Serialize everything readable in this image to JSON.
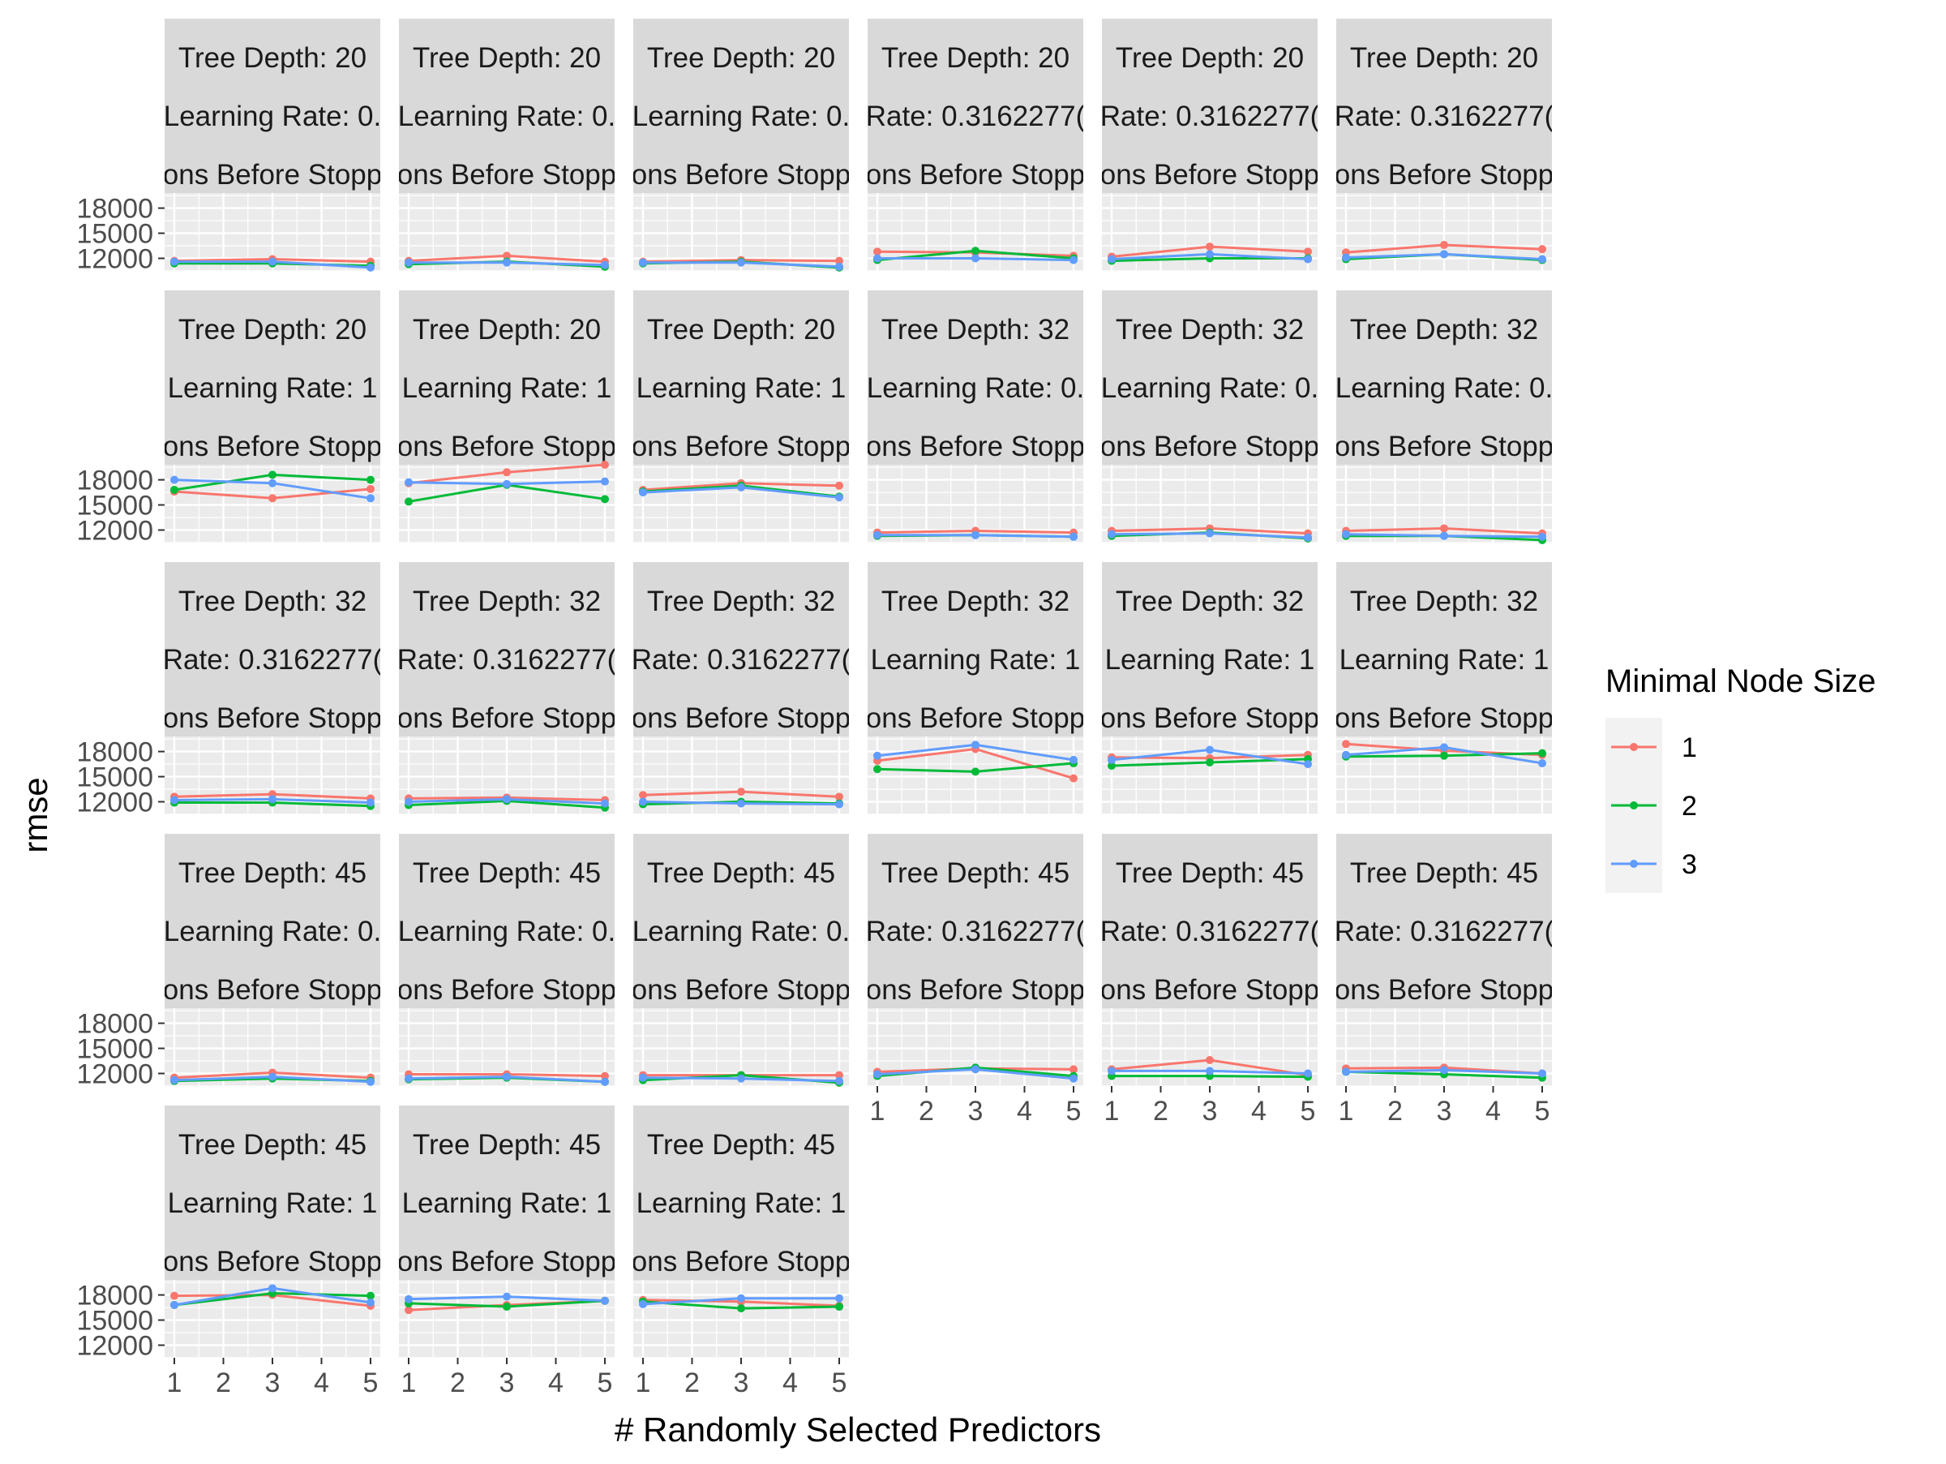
{
  "chart_data": {
    "type": "line",
    "title": "",
    "xlabel": "# Randomly Selected Predictors",
    "ylabel": "rmse",
    "x": [
      1,
      3,
      5
    ],
    "x_ticks": [
      1,
      2,
      3,
      4,
      5
    ],
    "y_ticks": [
      12000,
      15000,
      18000
    ],
    "xlim": [
      1,
      5
    ],
    "ylim": [
      10500,
      19800
    ],
    "grid": true,
    "legend": {
      "title": "Minimal Node Size",
      "position": "right",
      "entries": [
        {
          "label": "1",
          "color": "#F8766D"
        },
        {
          "label": "2",
          "color": "#00BA38"
        },
        {
          "label": "3",
          "color": "#619CFF"
        }
      ]
    },
    "panels": [
      {
        "strips": [
          "Tree Depth: 20",
          "Learning Rate: 0.",
          "ons Before Stopp"
        ],
        "series": [
          {
            "name": "1",
            "values": [
              11700,
              11900,
              11600
            ]
          },
          {
            "name": "2",
            "values": [
              11400,
              11400,
              11100
            ]
          },
          {
            "name": "3",
            "values": [
              11600,
              11600,
              10900
            ]
          }
        ]
      },
      {
        "strips": [
          "Tree Depth: 20",
          "Learning Rate: 0.",
          "ons Before Stopp"
        ],
        "series": [
          {
            "name": "1",
            "values": [
              11700,
              12300,
              11600
            ]
          },
          {
            "name": "2",
            "values": [
              11300,
              11600,
              11000
            ]
          },
          {
            "name": "3",
            "values": [
              11500,
              11500,
              11200
            ]
          }
        ]
      },
      {
        "strips": [
          "Tree Depth: 20",
          "Learning Rate: 0.",
          "ons Before Stopp"
        ],
        "series": [
          {
            "name": "1",
            "values": [
              11600,
              11800,
              11700
            ]
          },
          {
            "name": "2",
            "values": [
              11400,
              11600,
              10900
            ]
          },
          {
            "name": "3",
            "values": [
              11500,
              11500,
              11000
            ]
          }
        ]
      },
      {
        "strips": [
          "Tree Depth: 20",
          "Rate: 0.3162277(",
          "ons Before Stopp"
        ],
        "series": [
          {
            "name": "1",
            "values": [
              12800,
              12700,
              12300
            ]
          },
          {
            "name": "2",
            "values": [
              11800,
              12900,
              12000
            ]
          },
          {
            "name": "3",
            "values": [
              12000,
              12000,
              11800
            ]
          }
        ]
      },
      {
        "strips": [
          "Tree Depth: 20",
          "Rate: 0.3162277(",
          "ons Before Stopp"
        ],
        "series": [
          {
            "name": "1",
            "values": [
              12200,
              13400,
              12800
            ]
          },
          {
            "name": "2",
            "values": [
              11700,
              12000,
              12000
            ]
          },
          {
            "name": "3",
            "values": [
              11900,
              12500,
              11900
            ]
          }
        ]
      },
      {
        "strips": [
          "Tree Depth: 20",
          "Rate: 0.3162277(",
          "ons Before Stopp"
        ],
        "series": [
          {
            "name": "1",
            "values": [
              12700,
              13600,
              13100
            ]
          },
          {
            "name": "2",
            "values": [
              11900,
              12500,
              11800
            ]
          },
          {
            "name": "3",
            "values": [
              12100,
              12500,
              11900
            ]
          }
        ]
      },
      {
        "strips": [
          "Tree Depth: 20",
          "Learning Rate: 1",
          "ons Before Stopp"
        ],
        "series": [
          {
            "name": "1",
            "values": [
              16600,
              15800,
              16900
            ]
          },
          {
            "name": "2",
            "values": [
              16800,
              18600,
              18000
            ]
          },
          {
            "name": "3",
            "values": [
              18000,
              17600,
              15800
            ]
          }
        ]
      },
      {
        "strips": [
          "Tree Depth: 20",
          "Learning Rate: 1",
          "ons Before Stopp"
        ],
        "series": [
          {
            "name": "1",
            "values": [
              17600,
              18900,
              19800
            ]
          },
          {
            "name": "2",
            "values": [
              15400,
              17400,
              15700
            ]
          },
          {
            "name": "3",
            "values": [
              17700,
              17500,
              17800
            ]
          }
        ]
      },
      {
        "strips": [
          "Tree Depth: 20",
          "Learning Rate: 1",
          "ons Before Stopp"
        ],
        "series": [
          {
            "name": "1",
            "values": [
              16800,
              17600,
              17300
            ]
          },
          {
            "name": "2",
            "values": [
              16600,
              17300,
              16000
            ]
          },
          {
            "name": "3",
            "values": [
              16500,
              17100,
              15900
            ]
          }
        ]
      },
      {
        "strips": [
          "Tree Depth: 32",
          "Learning Rate: 0.",
          "ons Before Stopp"
        ],
        "series": [
          {
            "name": "1",
            "values": [
              11700,
              11900,
              11700
            ]
          },
          {
            "name": "2",
            "values": [
              11300,
              11400,
              11200
            ]
          },
          {
            "name": "3",
            "values": [
              11400,
              11400,
              11200
            ]
          }
        ]
      },
      {
        "strips": [
          "Tree Depth: 32",
          "Learning Rate: 0.",
          "ons Before Stopp"
        ],
        "series": [
          {
            "name": "1",
            "values": [
              11900,
              12200,
              11600
            ]
          },
          {
            "name": "2",
            "values": [
              11300,
              11700,
              11000
            ]
          },
          {
            "name": "3",
            "values": [
              11500,
              11600,
              11100
            ]
          }
        ]
      },
      {
        "strips": [
          "Tree Depth: 32",
          "Learning Rate: 0.",
          "ons Before Stopp"
        ],
        "series": [
          {
            "name": "1",
            "values": [
              11900,
              12200,
              11600
            ]
          },
          {
            "name": "2",
            "values": [
              11300,
              11300,
              10800
            ]
          },
          {
            "name": "3",
            "values": [
              11500,
              11300,
              11200
            ]
          }
        ]
      },
      {
        "strips": [
          "Tree Depth: 32",
          "Rate: 0.3162277(",
          "ons Before Stopp"
        ],
        "series": [
          {
            "name": "1",
            "values": [
              12600,
              12900,
              12400
            ]
          },
          {
            "name": "2",
            "values": [
              11900,
              11900,
              11500
            ]
          },
          {
            "name": "3",
            "values": [
              12200,
              12300,
              11900
            ]
          }
        ]
      },
      {
        "strips": [
          "Tree Depth: 32",
          "Rate: 0.3162277(",
          "ons Before Stopp"
        ],
        "series": [
          {
            "name": "1",
            "values": [
              12400,
              12500,
              12200
            ]
          },
          {
            "name": "2",
            "values": [
              11600,
              12100,
              11300
            ]
          },
          {
            "name": "3",
            "values": [
              12000,
              12300,
              11800
            ]
          }
        ]
      },
      {
        "strips": [
          "Tree Depth: 32",
          "Rate: 0.3162277(",
          "ons Before Stopp"
        ],
        "series": [
          {
            "name": "1",
            "values": [
              12800,
              13200,
              12600
            ]
          },
          {
            "name": "2",
            "values": [
              11700,
              12000,
              11800
            ]
          },
          {
            "name": "3",
            "values": [
              12000,
              11800,
              11700
            ]
          }
        ]
      },
      {
        "strips": [
          "Tree Depth: 32",
          "Learning Rate: 1",
          "ons Before Stopp"
        ],
        "series": [
          {
            "name": "1",
            "values": [
              16900,
              18300,
              14800
            ]
          },
          {
            "name": "2",
            "values": [
              15900,
              15600,
              16600
            ]
          },
          {
            "name": "3",
            "values": [
              17500,
              18800,
              17000
            ]
          }
        ]
      },
      {
        "strips": [
          "Tree Depth: 32",
          "Learning Rate: 1",
          "ons Before Stopp"
        ],
        "series": [
          {
            "name": "1",
            "values": [
              17300,
              17200,
              17600
            ]
          },
          {
            "name": "2",
            "values": [
              16300,
              16700,
              17100
            ]
          },
          {
            "name": "3",
            "values": [
              17000,
              18200,
              16500
            ]
          }
        ]
      },
      {
        "strips": [
          "Tree Depth: 32",
          "Learning Rate: 1",
          "ons Before Stopp"
        ],
        "series": [
          {
            "name": "1",
            "values": [
              18900,
              18100,
              17600
            ]
          },
          {
            "name": "2",
            "values": [
              17400,
              17500,
              17800
            ]
          },
          {
            "name": "3",
            "values": [
              17600,
              18500,
              16600
            ]
          }
        ]
      },
      {
        "strips": [
          "Tree Depth: 45",
          "Learning Rate: 0.",
          "ons Before Stopp"
        ],
        "series": [
          {
            "name": "1",
            "values": [
              11500,
              12100,
              11500
            ]
          },
          {
            "name": "2",
            "values": [
              11100,
              11400,
              11100
            ]
          },
          {
            "name": "3",
            "values": [
              11200,
              11600,
              11000
            ]
          }
        ]
      },
      {
        "strips": [
          "Tree Depth: 45",
          "Learning Rate: 0.",
          "ons Before Stopp"
        ],
        "series": [
          {
            "name": "1",
            "values": [
              11900,
              11900,
              11700
            ]
          },
          {
            "name": "2",
            "values": [
              11300,
              11500,
              11000
            ]
          },
          {
            "name": "3",
            "values": [
              11400,
              11600,
              11000
            ]
          }
        ]
      },
      {
        "strips": [
          "Tree Depth: 45",
          "Learning Rate: 0.",
          "ons Before Stopp"
        ],
        "series": [
          {
            "name": "1",
            "values": [
              11800,
              11800,
              11800
            ]
          },
          {
            "name": "2",
            "values": [
              11200,
              11800,
              10900
            ]
          },
          {
            "name": "3",
            "values": [
              11500,
              11400,
              11100
            ]
          }
        ]
      },
      {
        "strips": [
          "Tree Depth: 45",
          "Rate: 0.3162277(",
          "ons Before Stopp"
        ],
        "series": [
          {
            "name": "1",
            "values": [
              12200,
              12600,
              12500
            ]
          },
          {
            "name": "2",
            "values": [
              11700,
              12700,
              11700
            ]
          },
          {
            "name": "3",
            "values": [
              11900,
              12500,
              11400
            ]
          }
        ]
      },
      {
        "strips": [
          "Tree Depth: 45",
          "Rate: 0.3162277(",
          "ons Before Stopp"
        ],
        "series": [
          {
            "name": "1",
            "values": [
              12500,
              13600,
              11800
            ]
          },
          {
            "name": "2",
            "values": [
              11700,
              11700,
              11600
            ]
          },
          {
            "name": "3",
            "values": [
              12300,
              12300,
              12000
            ]
          }
        ]
      },
      {
        "strips": [
          "Tree Depth: 45",
          "Rate: 0.3162277(",
          "ons Before Stopp"
        ],
        "series": [
          {
            "name": "1",
            "values": [
              12600,
              12700,
              12000
            ]
          },
          {
            "name": "2",
            "values": [
              12200,
              11900,
              11500
            ]
          },
          {
            "name": "3",
            "values": [
              12200,
              12400,
              12000
            ]
          }
        ]
      },
      {
        "strips": [
          "Tree Depth: 45",
          "Learning Rate: 1",
          "ons Before Stopp"
        ],
        "series": [
          {
            "name": "1",
            "values": [
              17900,
              18000,
              16700
            ]
          },
          {
            "name": "2",
            "values": [
              16800,
              18200,
              17900
            ]
          },
          {
            "name": "3",
            "values": [
              16800,
              18800,
              17100
            ]
          }
        ]
      },
      {
        "strips": [
          "Tree Depth: 45",
          "Learning Rate: 1",
          "ons Before Stopp"
        ],
        "series": [
          {
            "name": "1",
            "values": [
              16200,
              16800,
              17300
            ]
          },
          {
            "name": "2",
            "values": [
              17000,
              16600,
              17300
            ]
          },
          {
            "name": "3",
            "values": [
              17500,
              17800,
              17300
            ]
          }
        ]
      },
      {
        "strips": [
          "Tree Depth: 45",
          "Learning Rate: 1",
          "ons Before Stopp"
        ],
        "series": [
          {
            "name": "1",
            "values": [
              17400,
              17200,
              16700
            ]
          },
          {
            "name": "2",
            "values": [
              17200,
              16400,
              16600
            ]
          },
          {
            "name": "3",
            "values": [
              16900,
              17600,
              17600
            ]
          }
        ]
      }
    ]
  }
}
